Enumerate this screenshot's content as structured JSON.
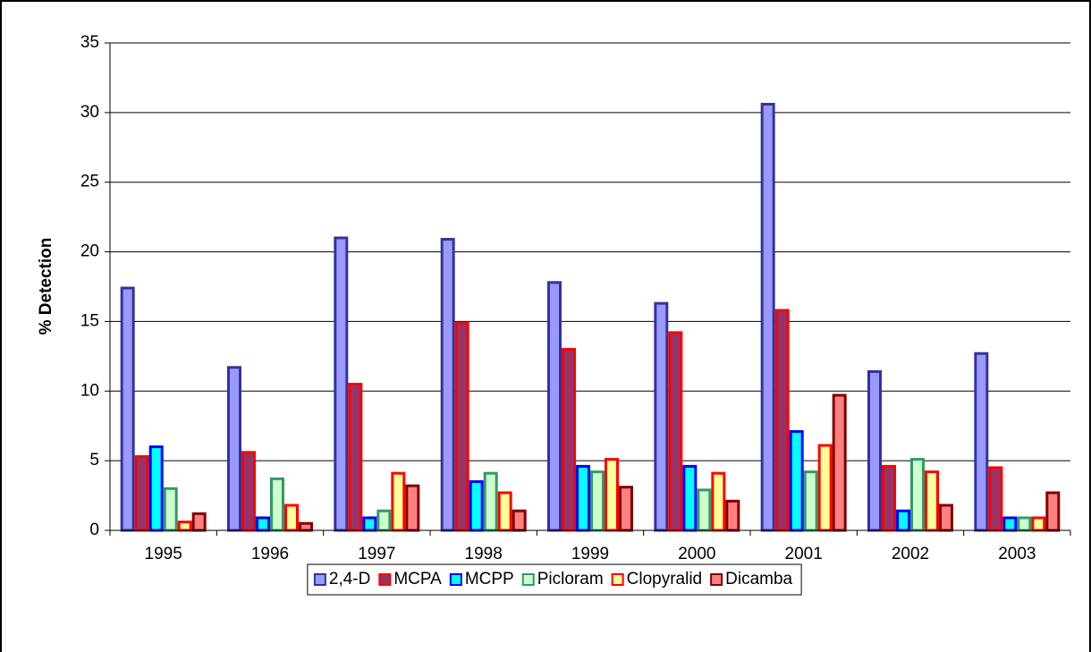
{
  "chart_data": {
    "type": "bar",
    "ylabel": "% Detection",
    "categories": [
      "1995",
      "1996",
      "1997",
      "1998",
      "1999",
      "2000",
      "2001",
      "2002",
      "2003"
    ],
    "series": [
      {
        "name": "2,4-D",
        "color": "#9999ff",
        "edgecolor": "#333399",
        "values": [
          17.4,
          11.7,
          21.0,
          20.9,
          17.8,
          16.3,
          30.6,
          11.4,
          12.7
        ]
      },
      {
        "name": "MCPA",
        "color": "#993366",
        "edgecolor": "#ff0000",
        "values": [
          5.3,
          5.6,
          10.5,
          14.9,
          13.0,
          14.2,
          15.8,
          4.6,
          4.5
        ]
      },
      {
        "name": "MCPP",
        "color": "#00ffff",
        "edgecolor": "#0000ff",
        "values": [
          6.0,
          0.9,
          0.9,
          3.5,
          4.6,
          4.6,
          7.1,
          1.4,
          0.9
        ]
      },
      {
        "name": "Picloram",
        "color": "#ccffcc",
        "edgecolor": "#339966",
        "values": [
          3.0,
          3.7,
          1.4,
          4.1,
          4.2,
          2.9,
          4.2,
          5.1,
          0.9
        ]
      },
      {
        "name": "Clopyralid",
        "color": "#ffff99",
        "edgecolor": "#ff0000",
        "values": [
          0.6,
          1.8,
          4.1,
          2.7,
          5.1,
          4.1,
          6.1,
          4.2,
          0.9
        ]
      },
      {
        "name": "Dicamba",
        "color": "#ff8080",
        "edgecolor": "#800000",
        "values": [
          1.2,
          0.5,
          3.2,
          1.4,
          3.1,
          2.1,
          9.7,
          1.8,
          2.7
        ]
      }
    ],
    "ylim": [
      0,
      35
    ],
    "yticks": [
      0,
      5,
      10,
      15,
      20,
      25,
      30,
      35
    ],
    "grid": true,
    "legend": "bottom"
  }
}
